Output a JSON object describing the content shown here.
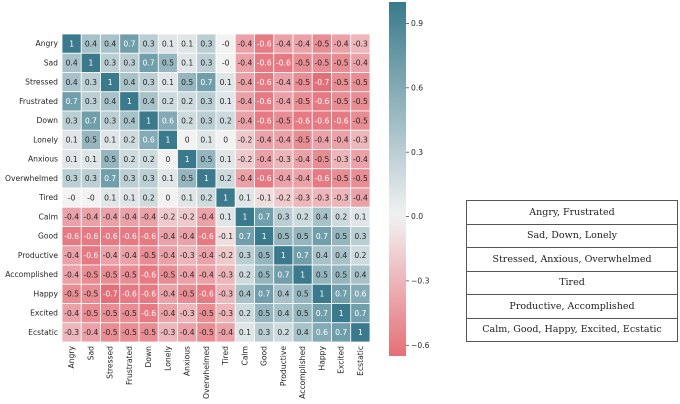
{
  "chart_data": {
    "type": "heatmap",
    "title": "",
    "xlabel": "",
    "ylabel": "",
    "labels": [
      "Angry",
      "Sad",
      "Stressed",
      "Frustrated",
      "Down",
      "Lonely",
      "Anxious",
      "Overwhelmed",
      "Tired",
      "Calm",
      "Good",
      "Productive",
      "Accomplished",
      "Happy",
      "Excited",
      "Ecstatic"
    ],
    "matrix": [
      [
        1,
        0.4,
        0.4,
        0.7,
        0.3,
        0.1,
        0.1,
        0.3,
        0,
        -0.4,
        -0.6,
        -0.4,
        -0.4,
        -0.5,
        -0.4,
        -0.3
      ],
      [
        0.4,
        1,
        0.3,
        0.3,
        0.7,
        0.5,
        0.1,
        0.3,
        0,
        -0.4,
        -0.6,
        -0.6,
        -0.5,
        -0.5,
        -0.5,
        -0.4
      ],
      [
        0.4,
        0.3,
        1,
        0.4,
        0.3,
        0.1,
        0.5,
        0.7,
        0.1,
        -0.4,
        -0.6,
        -0.4,
        -0.5,
        -0.7,
        -0.5,
        -0.5
      ],
      [
        0.7,
        0.3,
        0.4,
        1,
        0.4,
        0.2,
        0.2,
        0.3,
        0.1,
        -0.4,
        -0.6,
        -0.4,
        -0.5,
        -0.6,
        -0.5,
        -0.5
      ],
      [
        0.3,
        0.7,
        0.3,
        0.4,
        1,
        0.6,
        0.2,
        0.3,
        0.2,
        -0.4,
        -0.6,
        -0.5,
        -0.6,
        -0.6,
        -0.6,
        -0.5
      ],
      [
        0.1,
        0.5,
        0.1,
        0.2,
        0.6,
        1,
        0,
        0.1,
        0,
        -0.2,
        -0.4,
        -0.4,
        -0.5,
        -0.4,
        -0.4,
        -0.3
      ],
      [
        0.1,
        0.1,
        0.5,
        0.2,
        0.2,
        0,
        1,
        0.5,
        0.1,
        -0.2,
        -0.4,
        -0.3,
        -0.4,
        -0.5,
        -0.3,
        -0.4
      ],
      [
        0.3,
        0.3,
        0.7,
        0.3,
        0.3,
        0.1,
        0.5,
        1,
        0.2,
        -0.4,
        -0.6,
        -0.4,
        -0.4,
        -0.6,
        -0.5,
        -0.5
      ],
      [
        0,
        0,
        0.1,
        0.1,
        0.2,
        0,
        0.1,
        0.2,
        1,
        0.1,
        -0.1,
        -0.2,
        -0.3,
        -0.3,
        -0.3,
        -0.4
      ],
      [
        -0.4,
        -0.4,
        -0.4,
        -0.4,
        -0.4,
        -0.2,
        -0.2,
        -0.4,
        0.1,
        1,
        0.7,
        0.3,
        0.2,
        0.4,
        0.2,
        0.1
      ],
      [
        -0.6,
        -0.6,
        -0.6,
        -0.6,
        -0.6,
        -0.4,
        -0.4,
        -0.6,
        -0.1,
        0.7,
        1,
        0.5,
        0.5,
        0.7,
        0.5,
        0.3
      ],
      [
        -0.4,
        -0.6,
        -0.4,
        -0.4,
        -0.5,
        -0.4,
        -0.3,
        -0.4,
        -0.2,
        0.3,
        0.5,
        1,
        0.7,
        0.4,
        0.4,
        0.2
      ],
      [
        -0.4,
        -0.5,
        -0.5,
        -0.5,
        -0.6,
        -0.5,
        -0.4,
        -0.4,
        -0.3,
        0.2,
        0.5,
        0.7,
        1,
        0.5,
        0.5,
        0.4
      ],
      [
        -0.5,
        -0.5,
        -0.7,
        -0.6,
        -0.6,
        -0.4,
        -0.5,
        -0.6,
        -0.3,
        0.4,
        0.7,
        0.4,
        0.5,
        1,
        0.7,
        0.6
      ],
      [
        -0.4,
        -0.5,
        -0.5,
        -0.5,
        -0.6,
        -0.4,
        -0.3,
        -0.5,
        -0.3,
        0.2,
        0.5,
        0.4,
        0.5,
        0.7,
        1,
        0.7
      ],
      [
        -0.3,
        -0.4,
        -0.5,
        -0.5,
        -0.5,
        -0.3,
        -0.4,
        -0.5,
        -0.4,
        0.1,
        0.3,
        0.2,
        0.4,
        0.6,
        0.7,
        1
      ]
    ],
    "colorbar": {
      "range": [
        -0.65,
        1.0
      ],
      "ticks": [
        0.9,
        0.6,
        0.3,
        0.0,
        -0.3,
        -0.6
      ],
      "tick_labels": [
        "0.9",
        "0.6",
        "0.3",
        "0.0",
        "−0.3",
        "−0.6"
      ],
      "colors": {
        "negative": "#e56f78",
        "neutral": "#f2f2f2",
        "positive": "#3a7a8c"
      }
    },
    "annotations": true,
    "grid": false
  },
  "legend_table": {
    "rows": [
      "Angry, Frustrated",
      "Sad, Down, Lonely",
      "Stressed, Anxious, Overwhelmed",
      "Tired",
      "Productive, Accomplished",
      "Calm, Good, Happy, Excited, Ecstatic"
    ]
  }
}
